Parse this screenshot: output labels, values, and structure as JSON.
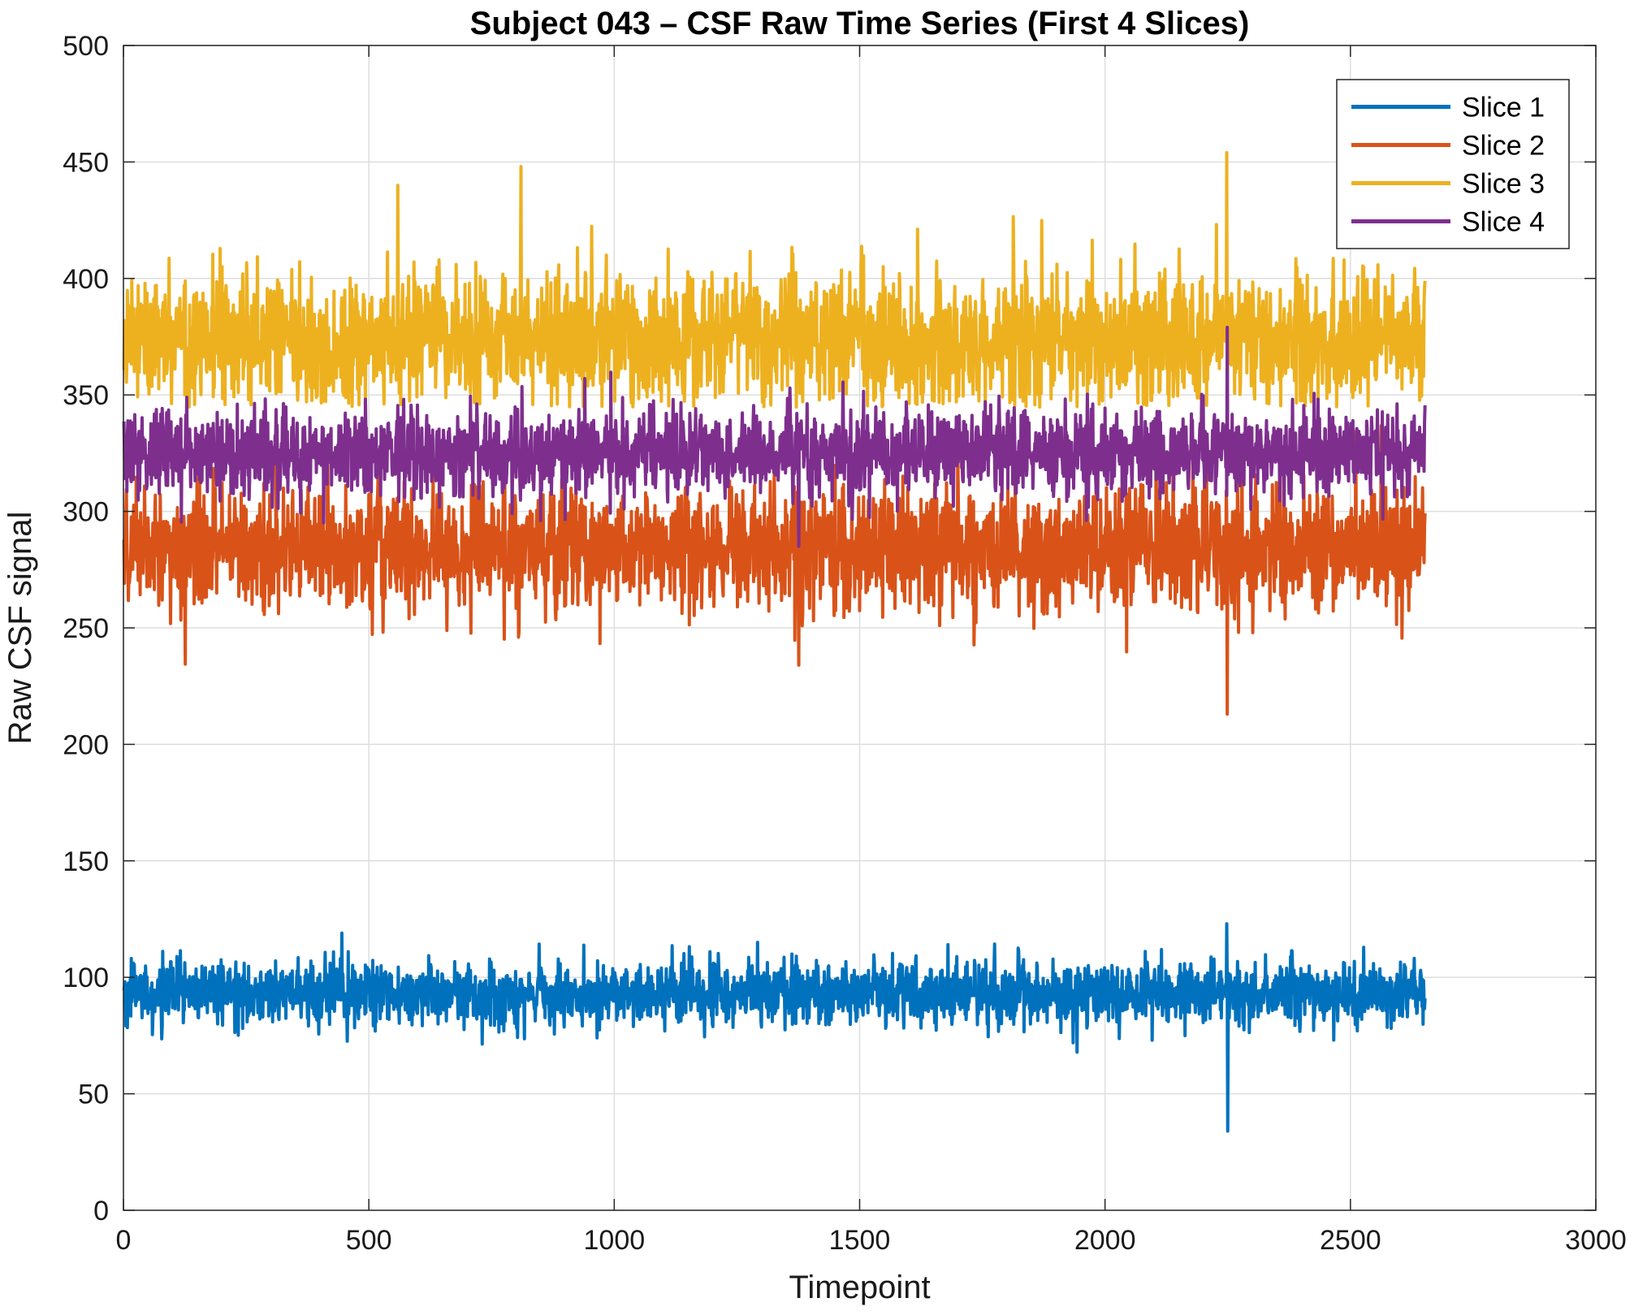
{
  "chart_data": {
    "type": "line",
    "title": "Subject 043 – CSF Raw Time Series (First 4 Slices)",
    "xlabel": "Timepoint",
    "ylabel": "Raw CSF signal",
    "xlim": [
      0,
      3000
    ],
    "ylim": [
      0,
      500
    ],
    "xticks": [
      0,
      500,
      1000,
      1500,
      2000,
      2500,
      3000
    ],
    "xtick_labels": [
      "0",
      "500",
      "1000",
      "1500",
      "2000",
      "2500",
      "3000"
    ],
    "yticks": [
      0,
      50,
      100,
      150,
      200,
      250,
      300,
      350,
      400,
      450,
      500
    ],
    "ytick_labels": [
      "0",
      "50",
      "100",
      "150",
      "200",
      "250",
      "300",
      "350",
      "400",
      "450",
      "500"
    ],
    "grid": true,
    "legend_position": "top-right",
    "x_range": [
      1,
      2652
    ],
    "series": [
      {
        "name": "Slice 1",
        "color": "#0072BD",
        "mean": 93,
        "spread": 6.5,
        "min_value": 34,
        "max_value": 123,
        "notable_points": [
          {
            "x": 445,
            "y": 119
          },
          {
            "x": 2248,
            "y": 123
          },
          {
            "x": 2250,
            "y": 34
          }
        ]
      },
      {
        "name": "Slice 2",
        "color": "#D95319",
        "mean": 284,
        "spread": 13,
        "min_value": 213,
        "max_value": 356,
        "notable_points": [
          {
            "x": 2249,
            "y": 213
          },
          {
            "x": 1376,
            "y": 234
          }
        ]
      },
      {
        "name": "Slice 3",
        "color": "#EDB120",
        "mean": 374,
        "spread": 14,
        "min_value": 335,
        "max_value": 454,
        "notable_points": [
          {
            "x": 810,
            "y": 448
          },
          {
            "x": 2248,
            "y": 454
          },
          {
            "x": 559,
            "y": 440
          }
        ]
      },
      {
        "name": "Slice 4",
        "color": "#7E2F8E",
        "mean": 325,
        "spread": 9,
        "min_value": 285,
        "max_value": 379,
        "notable_points": [
          {
            "x": 2249,
            "y": 379
          },
          {
            "x": 1376,
            "y": 285
          }
        ]
      }
    ]
  }
}
